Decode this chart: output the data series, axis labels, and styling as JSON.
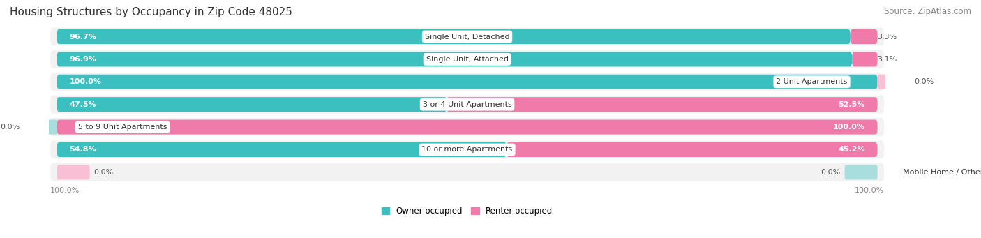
{
  "title": "Housing Structures by Occupancy in Zip Code 48025",
  "source": "Source: ZipAtlas.com",
  "categories": [
    "Single Unit, Detached",
    "Single Unit, Attached",
    "2 Unit Apartments",
    "3 or 4 Unit Apartments",
    "5 to 9 Unit Apartments",
    "10 or more Apartments",
    "Mobile Home / Other"
  ],
  "owner_pct": [
    96.7,
    96.9,
    100.0,
    47.5,
    0.0,
    54.8,
    0.0
  ],
  "renter_pct": [
    3.3,
    3.1,
    0.0,
    52.5,
    100.0,
    45.2,
    0.0
  ],
  "owner_color": "#3BBFBF",
  "renter_color": "#F07BAA",
  "owner_color_light": "#A8DEDE",
  "renter_color_light": "#F9C0D5",
  "row_bg_color": "#F2F2F2",
  "title_fontsize": 11,
  "source_fontsize": 8.5,
  "bar_label_fontsize": 8,
  "cat_label_fontsize": 8,
  "legend_fontsize": 8.5,
  "axis_label_fontsize": 8
}
